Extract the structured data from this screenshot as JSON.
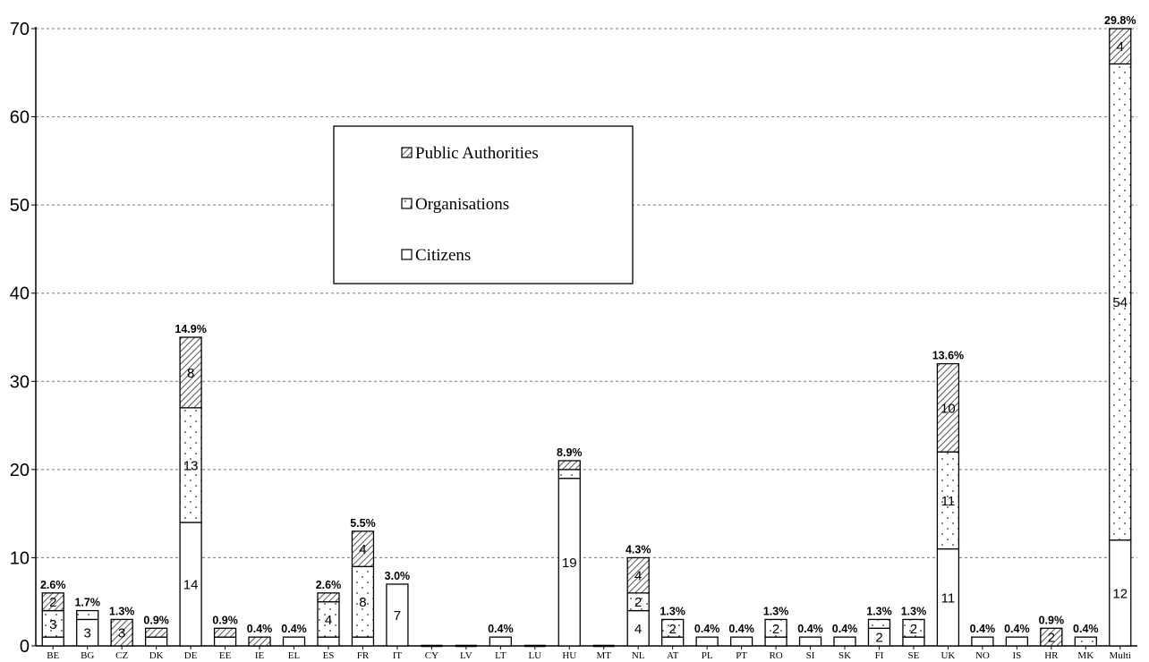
{
  "chart_data": {
    "type": "bar",
    "stacked": true,
    "categories": [
      "BE",
      "BG",
      "CZ",
      "DK",
      "DE",
      "EE",
      "IE",
      "EL",
      "ES",
      "FR",
      "IT",
      "CY",
      "LV",
      "LT",
      "LU",
      "HU",
      "MT",
      "NL",
      "AT",
      "PL",
      "PT",
      "RO",
      "SI",
      "SK",
      "FI",
      "SE",
      "UK",
      "NO",
      "IS",
      "HR",
      "MK",
      "Multi"
    ],
    "series": [
      {
        "name": "Citizens",
        "pattern": "plain",
        "values": [
          1,
          3,
          0,
          1,
          14,
          1,
          0,
          1,
          1,
          1,
          7,
          0,
          0,
          1,
          0,
          19,
          0,
          4,
          1,
          1,
          1,
          1,
          1,
          1,
          2,
          1,
          11,
          1,
          1,
          0,
          0,
          12
        ],
        "labels": [
          null,
          "3",
          null,
          null,
          "14",
          null,
          null,
          null,
          null,
          null,
          "7",
          null,
          null,
          null,
          null,
          "19",
          null,
          "4",
          null,
          null,
          null,
          null,
          null,
          null,
          "2",
          null,
          "11",
          null,
          null,
          null,
          null,
          "12"
        ]
      },
      {
        "name": "Organisations",
        "pattern": "dots",
        "values": [
          3,
          1,
          0,
          0,
          13,
          0,
          0,
          0,
          4,
          8,
          0,
          0,
          0,
          0,
          0,
          1,
          0,
          2,
          2,
          0,
          0,
          2,
          0,
          0,
          1,
          2,
          11,
          0,
          0,
          0,
          1,
          54
        ],
        "labels": [
          "3",
          null,
          null,
          null,
          "13",
          null,
          null,
          null,
          "4",
          "8",
          null,
          null,
          null,
          null,
          null,
          null,
          null,
          "2",
          "2",
          null,
          null,
          "2",
          null,
          null,
          null,
          "2",
          "11",
          null,
          null,
          null,
          null,
          "54"
        ]
      },
      {
        "name": "Public Authorities",
        "pattern": "hatch",
        "values": [
          2,
          0,
          3,
          1,
          8,
          1,
          1,
          0,
          1,
          4,
          0,
          0,
          0,
          0,
          0,
          1,
          0,
          4,
          0,
          0,
          0,
          0,
          0,
          0,
          0,
          0,
          10,
          0,
          0,
          2,
          0,
          4
        ],
        "labels": [
          "2",
          null,
          "3",
          null,
          "8",
          null,
          null,
          null,
          null,
          "4",
          null,
          null,
          null,
          null,
          null,
          null,
          null,
          "4",
          null,
          null,
          null,
          null,
          null,
          null,
          null,
          null,
          "10",
          null,
          null,
          "2",
          null,
          "4"
        ]
      }
    ],
    "percentages": [
      "2.6%",
      "1.7%",
      "1.3%",
      "0.9%",
      "14.9%",
      "0.9%",
      "0.4%",
      "0.4%",
      "2.6%",
      "5.5%",
      "3.0%",
      null,
      null,
      "0.4%",
      null,
      "8.9%",
      null,
      "4.3%",
      "1.3%",
      "0.4%",
      "0.4%",
      "1.3%",
      "0.4%",
      "0.4%",
      "1.3%",
      "1.3%",
      "13.6%",
      "0.4%",
      "0.4%",
      "0.9%",
      "0.4%",
      "29.8%"
    ],
    "ylim": [
      0,
      70
    ],
    "yticks": [
      "0",
      "10",
      "20",
      "30",
      "40",
      "50",
      "60",
      "70"
    ],
    "grid": true,
    "legend": {
      "position": "top-center",
      "order": [
        "Public Authorities",
        "Organisations",
        "Citizens"
      ]
    },
    "title": "",
    "xlabel": "",
    "ylabel": ""
  }
}
